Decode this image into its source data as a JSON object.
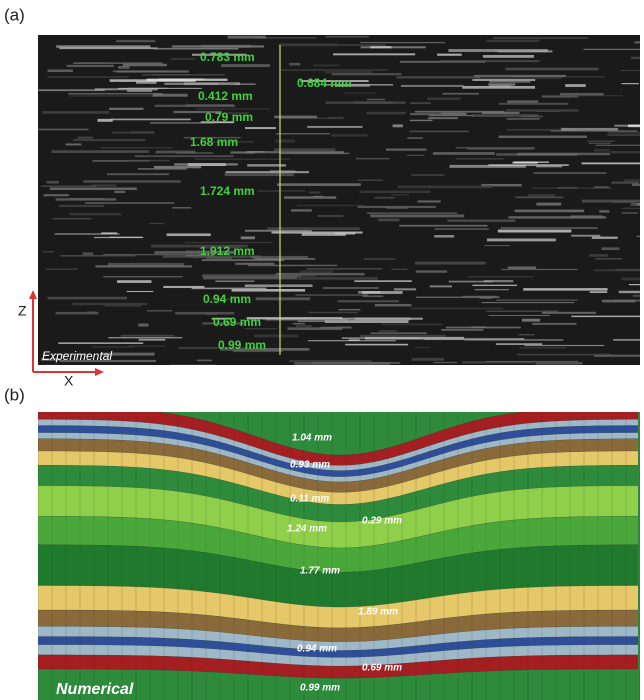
{
  "panels": [
    {
      "label": "(a)",
      "name": "Experimental",
      "axes": {
        "z": "Z",
        "x": "X"
      },
      "measurements": [
        "0.783 mm",
        "0.684 mm",
        "0.412 mm",
        "0.79 mm",
        "1.68 mm",
        "1.724 mm",
        "1.912 mm",
        "0.94 mm",
        "0.69 mm",
        "0.99 mm"
      ]
    },
    {
      "label": "(b)",
      "name": "Numerical",
      "measurements": [
        "1.04 mm",
        "0.93 mm",
        "0.11 mm",
        "0.29 mm",
        "1.24 mm",
        "1.77 mm",
        "1.89 mm",
        "0.94 mm",
        "0.69 mm",
        "0.99 mm"
      ]
    }
  ]
}
